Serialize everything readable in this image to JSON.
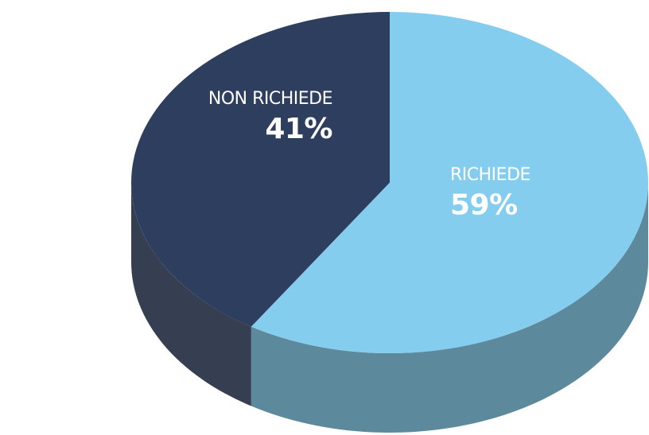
{
  "chart_data": {
    "type": "pie",
    "categories": [
      "NON RICHIEDE",
      "RICHIEDE"
    ],
    "values": [
      41,
      59
    ],
    "value_labels": [
      "41%",
      "59%"
    ],
    "colors": [
      "#2d3e5f",
      "#85cdee"
    ],
    "side_colors": [
      "#363f52",
      "#5c899c"
    ]
  }
}
